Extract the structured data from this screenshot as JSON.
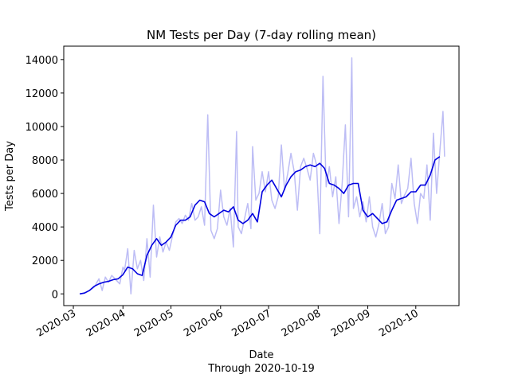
{
  "chart_data": {
    "type": "line",
    "title": "NM Tests per Day (7-day rolling mean)",
    "xlabel": "Date",
    "xlabel_sub": "Through 2020-10-19",
    "ylabel": "Tests per Day",
    "xlim": [
      "2020-02-24",
      "2020-10-28"
    ],
    "ylim": [
      -700,
      14800
    ],
    "yticks": [
      0,
      2000,
      4000,
      6000,
      8000,
      10000,
      12000,
      14000
    ],
    "xticks": [
      "2020-03",
      "2020-04",
      "2020-05",
      "2020-06",
      "2020-07",
      "2020-08",
      "2020-09",
      "2020-10"
    ],
    "grid": false,
    "legend": "none",
    "colors": {
      "daily": "#bdbdf5",
      "rolling": "#0000e0"
    },
    "series": [
      {
        "role": "daily",
        "x": [
          "2020-03-05",
          "2020-03-08",
          "2020-03-11",
          "2020-03-14",
          "2020-03-17",
          "2020-03-19",
          "2020-03-21",
          "2020-03-23",
          "2020-03-25",
          "2020-03-27",
          "2020-03-30",
          "2020-04-01",
          "2020-04-02",
          "2020-04-04",
          "2020-04-06",
          "2020-04-08",
          "2020-04-10",
          "2020-04-12",
          "2020-04-14",
          "2020-04-16",
          "2020-04-18",
          "2020-04-20",
          "2020-04-22",
          "2020-04-24",
          "2020-04-26",
          "2020-04-28",
          "2020-04-30",
          "2020-05-02",
          "2020-05-04",
          "2020-05-06",
          "2020-05-08",
          "2020-05-10",
          "2020-05-12",
          "2020-05-14",
          "2020-05-16",
          "2020-05-18",
          "2020-05-20",
          "2020-05-22",
          "2020-05-24",
          "2020-05-26",
          "2020-05-28",
          "2020-05-30",
          "2020-06-01",
          "2020-06-03",
          "2020-06-05",
          "2020-06-07",
          "2020-06-09",
          "2020-06-11",
          "2020-06-12",
          "2020-06-14",
          "2020-06-16",
          "2020-06-18",
          "2020-06-20",
          "2020-06-21",
          "2020-06-23",
          "2020-06-25",
          "2020-06-27",
          "2020-06-29",
          "2020-07-01",
          "2020-07-03",
          "2020-07-05",
          "2020-07-07",
          "2020-07-09",
          "2020-07-11",
          "2020-07-13",
          "2020-07-15",
          "2020-07-17",
          "2020-07-19",
          "2020-07-21",
          "2020-07-23",
          "2020-07-25",
          "2020-07-27",
          "2020-07-29",
          "2020-07-31",
          "2020-08-02",
          "2020-08-04",
          "2020-08-06",
          "2020-08-08",
          "2020-08-10",
          "2020-08-12",
          "2020-08-14",
          "2020-08-16",
          "2020-08-18",
          "2020-08-20",
          "2020-08-22",
          "2020-08-23",
          "2020-08-25",
          "2020-08-27",
          "2020-08-29",
          "2020-08-31",
          "2020-09-02",
          "2020-09-04",
          "2020-09-06",
          "2020-09-08",
          "2020-09-10",
          "2020-09-12",
          "2020-09-14",
          "2020-09-16",
          "2020-09-18",
          "2020-09-20",
          "2020-09-22",
          "2020-09-24",
          "2020-09-26",
          "2020-09-28",
          "2020-09-30",
          "2020-10-02",
          "2020-10-04",
          "2020-10-06",
          "2020-10-08",
          "2020-10-10",
          "2020-10-12",
          "2020-10-14",
          "2020-10-16",
          "2020-10-18",
          "2020-10-19"
        ],
        "y": [
          0,
          50,
          200,
          400,
          900,
          200,
          1000,
          700,
          1100,
          900,
          600,
          1600,
          1400,
          2700,
          0,
          2600,
          1500,
          2000,
          800,
          3300,
          1000,
          5300,
          2200,
          3400,
          2500,
          3100,
          2600,
          3500,
          4300,
          4500,
          4200,
          4700,
          4400,
          5400,
          4400,
          4600,
          5200,
          4100,
          10700,
          3800,
          3300,
          3900,
          6200,
          4600,
          4100,
          5100,
          2800,
          9700,
          4000,
          3600,
          4500,
          5400,
          3900,
          8800,
          5600,
          6000,
          7300,
          6100,
          7300,
          5600,
          5100,
          5800,
          8900,
          6200,
          7200,
          8400,
          7300,
          5000,
          7600,
          8100,
          7500,
          6800,
          8400,
          7700,
          3600,
          13000,
          6400,
          7600,
          5800,
          7000,
          4200,
          6600,
          10100,
          4600,
          14100,
          5100,
          5800,
          4600,
          5500,
          4300,
          5800,
          4000,
          3400,
          4200,
          5400,
          3600,
          4000,
          6600,
          5700,
          7700,
          5400,
          5900,
          6300,
          8100,
          5400,
          4200,
          6000,
          5700,
          7700,
          4400,
          9600,
          6000,
          8500,
          10900,
          8200
        ]
      },
      {
        "role": "rolling",
        "x": [
          "2020-03-05",
          "2020-03-08",
          "2020-03-11",
          "2020-03-14",
          "2020-03-17",
          "2020-03-20",
          "2020-03-23",
          "2020-03-26",
          "2020-03-29",
          "2020-04-01",
          "2020-04-04",
          "2020-04-07",
          "2020-04-10",
          "2020-04-13",
          "2020-04-16",
          "2020-04-19",
          "2020-04-22",
          "2020-04-25",
          "2020-04-28",
          "2020-05-01",
          "2020-05-04",
          "2020-05-07",
          "2020-05-10",
          "2020-05-13",
          "2020-05-16",
          "2020-05-19",
          "2020-05-22",
          "2020-05-25",
          "2020-05-28",
          "2020-05-31",
          "2020-06-03",
          "2020-06-06",
          "2020-06-09",
          "2020-06-12",
          "2020-06-15",
          "2020-06-18",
          "2020-06-21",
          "2020-06-24",
          "2020-06-27",
          "2020-06-30",
          "2020-07-03",
          "2020-07-06",
          "2020-07-09",
          "2020-07-12",
          "2020-07-15",
          "2020-07-18",
          "2020-07-21",
          "2020-07-24",
          "2020-07-27",
          "2020-07-30",
          "2020-08-02",
          "2020-08-05",
          "2020-08-08",
          "2020-08-11",
          "2020-08-14",
          "2020-08-17",
          "2020-08-20",
          "2020-08-23",
          "2020-08-26",
          "2020-08-29",
          "2020-09-01",
          "2020-09-04",
          "2020-09-07",
          "2020-09-10",
          "2020-09-13",
          "2020-09-16",
          "2020-09-19",
          "2020-09-22",
          "2020-09-25",
          "2020-09-28",
          "2020-10-01",
          "2020-10-04",
          "2020-10-07",
          "2020-10-10",
          "2020-10-13",
          "2020-10-16"
        ],
        "y": [
          0,
          50,
          200,
          450,
          600,
          700,
          750,
          850,
          900,
          1150,
          1600,
          1500,
          1200,
          1100,
          2300,
          2900,
          3300,
          2900,
          3100,
          3400,
          4100,
          4400,
          4400,
          4600,
          5300,
          5600,
          5500,
          4800,
          4600,
          4800,
          5000,
          4900,
          5200,
          4400,
          4200,
          4400,
          4800,
          4300,
          6100,
          6500,
          6800,
          6300,
          5800,
          6500,
          7000,
          7300,
          7400,
          7600,
          7700,
          7600,
          7800,
          7500,
          6600,
          6500,
          6300,
          6000,
          6500,
          6600,
          6600,
          5000,
          4600,
          4800,
          4500,
          4200,
          4300,
          5000,
          5600,
          5700,
          5800,
          6100,
          6100,
          6500,
          6500,
          7100,
          8000,
          8200
        ]
      }
    ]
  }
}
